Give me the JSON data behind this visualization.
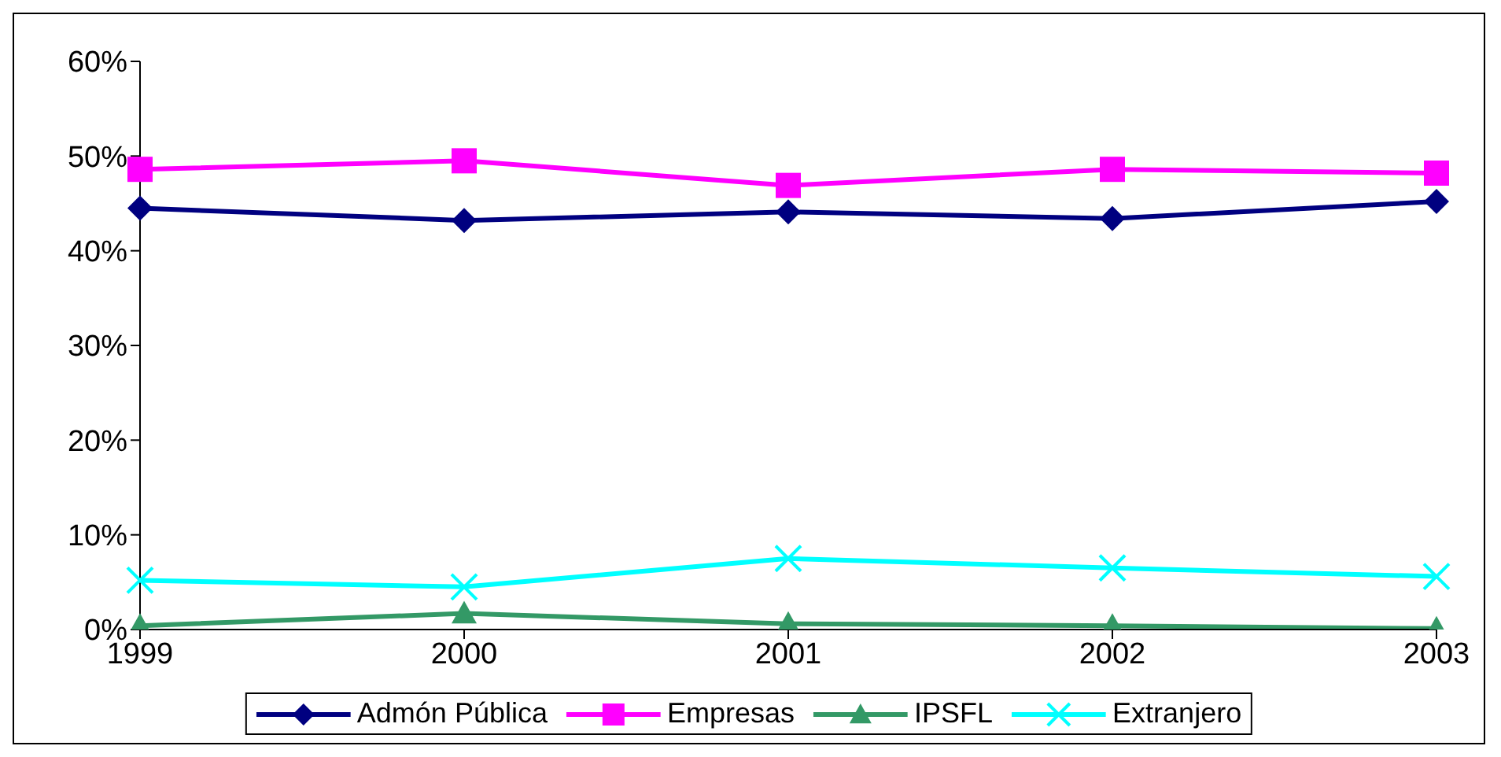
{
  "chart_data": {
    "type": "line",
    "categories": [
      "1999",
      "2000",
      "2001",
      "2002",
      "2003"
    ],
    "series": [
      {
        "name": "Admón Pública",
        "color": "#000080",
        "marker": "diamond",
        "values": [
          44.5,
          43.2,
          44.1,
          43.4,
          45.2
        ]
      },
      {
        "name": "Empresas",
        "color": "#ff00ff",
        "marker": "square",
        "values": [
          48.6,
          49.5,
          46.9,
          48.6,
          48.2
        ]
      },
      {
        "name": "IPSFL",
        "color": "#339966",
        "marker": "triangle",
        "values": [
          0.4,
          1.7,
          0.6,
          0.4,
          0.1
        ]
      },
      {
        "name": "Extranjero",
        "color": "#00ffff",
        "marker": "cross",
        "values": [
          5.2,
          4.5,
          7.5,
          6.5,
          5.6
        ]
      }
    ],
    "ylim": [
      0,
      60
    ],
    "yticks": [
      {
        "value": 0,
        "label": "0%"
      },
      {
        "value": 10,
        "label": "10%"
      },
      {
        "value": 20,
        "label": "20%"
      },
      {
        "value": 30,
        "label": "30%"
      },
      {
        "value": 40,
        "label": "40%"
      },
      {
        "value": 50,
        "label": "50%"
      },
      {
        "value": 60,
        "label": "60%"
      }
    ],
    "grid": false,
    "legend": "bottom"
  }
}
